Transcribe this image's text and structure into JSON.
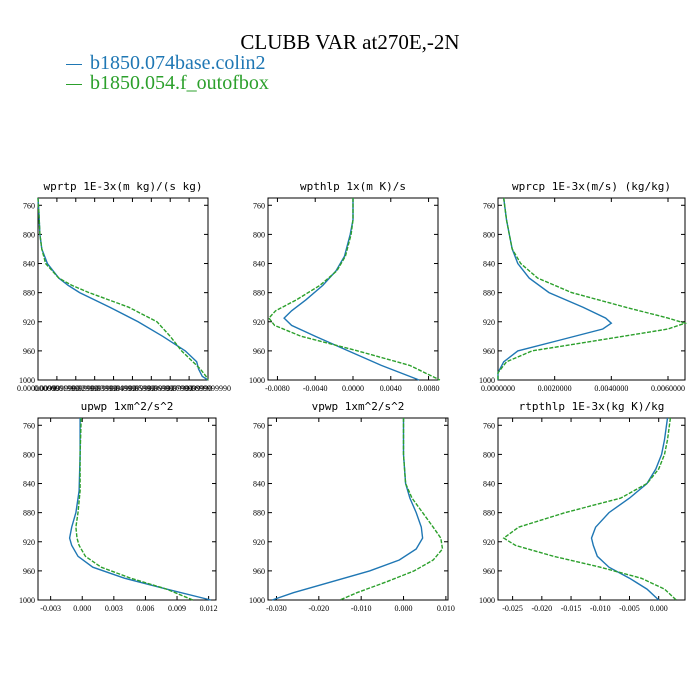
{
  "figure": {
    "title": "CLUBB VAR at270E,-2N",
    "legend": [
      {
        "label": "b1850.074base.colin2",
        "color": "#1f77b4"
      },
      {
        "label": "b1850.054.f_outofbox",
        "color": "#2ca02c"
      }
    ]
  },
  "chart_data": [
    {
      "type": "line",
      "title": "wprtp  1E-3x(m kg)/(s kg)",
      "ylim": [
        1000,
        750
      ],
      "yticks": [
        760,
        800,
        840,
        880,
        920,
        960,
        1000
      ],
      "xlim": [
        0.0,
        0.09
      ],
      "xticks": [
        0,
        0.01,
        0.02,
        0.03,
        0.04,
        0.05,
        0.06,
        0.07,
        0.08,
        0.09
      ],
      "xticklabels": [
        "0.000000000",
        "0.0099999990",
        "0.0199999990",
        "0.0299999990",
        "0.0399999990",
        "0.0499999990",
        "0.0599999990",
        "0.0699999990",
        "0.0799999990",
        "0.0899999990"
      ],
      "y": [
        750,
        770,
        800,
        820,
        840,
        860,
        870,
        880,
        900,
        920,
        940,
        960,
        975,
        985,
        995,
        1000
      ],
      "series": [
        {
          "color": "#1f77b4",
          "dashed": false,
          "x": [
            0.0,
            0.0005,
            0.001,
            0.002,
            0.005,
            0.011,
            0.016,
            0.022,
            0.038,
            0.053,
            0.066,
            0.078,
            0.084,
            0.085,
            0.087,
            0.09
          ]
        },
        {
          "color": "#2ca02c",
          "dashed": true,
          "x": [
            0.0,
            0.0005,
            0.001,
            0.002,
            0.004,
            0.011,
            0.018,
            0.027,
            0.048,
            0.063,
            0.07,
            0.076,
            0.082,
            0.086,
            0.089,
            0.09
          ]
        }
      ]
    },
    {
      "type": "line",
      "title": "wpthlp  1x(m K)/s",
      "ylim": [
        1000,
        750
      ],
      "yticks": [
        760,
        800,
        840,
        880,
        920,
        960,
        1000
      ],
      "xlim": [
        -0.009,
        0.009
      ],
      "xticks": [
        -0.008,
        -0.004,
        0.0,
        0.004,
        0.008
      ],
      "xticklabels": [
        "-0.0080",
        "-0.0040",
        "0.0000",
        "0.0040",
        "0.0080"
      ],
      "y": [
        750,
        780,
        800,
        830,
        850,
        870,
        890,
        905,
        915,
        925,
        940,
        960,
        980,
        1000
      ],
      "series": [
        {
          "color": "#1f77b4",
          "dashed": false,
          "x": [
            0.0,
            0.0,
            -0.0003,
            -0.0009,
            -0.0018,
            -0.0032,
            -0.005,
            -0.0065,
            -0.0073,
            -0.0065,
            -0.004,
            -0.0005,
            0.003,
            0.007
          ]
        },
        {
          "color": "#2ca02c",
          "dashed": true,
          "x": [
            0.0,
            0.0,
            -0.0002,
            -0.0008,
            -0.0017,
            -0.0035,
            -0.006,
            -0.0082,
            -0.0089,
            -0.0083,
            -0.0055,
            0.0005,
            0.006,
            0.0092
          ]
        }
      ]
    },
    {
      "type": "line",
      "title": "wprcp  1E-3x(m/s) (kg/kg)",
      "ylim": [
        1000,
        750
      ],
      "yticks": [
        760,
        800,
        840,
        880,
        920,
        960,
        1000
      ],
      "xlim": [
        0.0,
        0.0066
      ],
      "xticks": [
        0.0,
        0.002,
        0.004,
        0.006
      ],
      "xticklabels": [
        "0.0000000",
        "0.0020000",
        "0.0040000",
        "0.0060000"
      ],
      "y": [
        750,
        780,
        800,
        820,
        840,
        860,
        880,
        900,
        915,
        922,
        930,
        945,
        960,
        975,
        990,
        1000
      ],
      "series": [
        {
          "color": "#1f77b4",
          "dashed": false,
          "x": [
            0.0002,
            0.0003,
            0.0004,
            0.0005,
            0.0007,
            0.0011,
            0.0018,
            0.003,
            0.0038,
            0.004,
            0.0037,
            0.0022,
            0.0007,
            0.0002,
            0.0,
            0.0
          ]
        },
        {
          "color": "#2ca02c",
          "dashed": true,
          "x": [
            0.0002,
            0.0003,
            0.0004,
            0.0005,
            0.0008,
            0.0014,
            0.0026,
            0.0045,
            0.006,
            0.0066,
            0.006,
            0.0036,
            0.0012,
            0.0003,
            0.0,
            0.0
          ]
        }
      ]
    },
    {
      "type": "line",
      "title": "upwp  1xm^2/s^2",
      "ylim": [
        1000,
        750
      ],
      "yticks": [
        760,
        800,
        840,
        880,
        920,
        960,
        1000
      ],
      "xlim": [
        -0.0042,
        0.0127
      ],
      "xticks": [
        -0.003,
        0.0,
        0.003,
        0.006,
        0.009,
        0.012
      ],
      "xticklabels": [
        "-0.003",
        "0.000",
        "0.003",
        "0.006",
        "0.009",
        "0.012"
      ],
      "y": [
        750,
        800,
        850,
        880,
        900,
        915,
        925,
        940,
        955,
        970,
        985,
        1000
      ],
      "series": [
        {
          "color": "#1f77b4",
          "dashed": false,
          "x": [
            -0.0002,
            -0.0002,
            -0.0003,
            -0.0006,
            -0.001,
            -0.0012,
            -0.001,
            -0.0004,
            0.001,
            0.004,
            0.008,
            0.0122
          ]
        },
        {
          "color": "#2ca02c",
          "dashed": true,
          "x": [
            -0.0001,
            -0.0002,
            -0.0002,
            -0.0004,
            -0.0006,
            -0.0005,
            -0.0003,
            0.0003,
            0.0018,
            0.0046,
            0.008,
            0.0105
          ]
        }
      ]
    },
    {
      "type": "line",
      "title": "vpwp  1xm^2/s^2",
      "ylim": [
        1000,
        750
      ],
      "yticks": [
        760,
        800,
        840,
        880,
        920,
        960,
        1000
      ],
      "xlim": [
        -0.032,
        0.0105
      ],
      "xticks": [
        -0.03,
        -0.02,
        -0.01,
        0.0,
        0.01
      ],
      "xticklabels": [
        "-0.030",
        "-0.020",
        "-0.010",
        "0.000",
        "0.010"
      ],
      "y": [
        750,
        800,
        840,
        860,
        880,
        900,
        915,
        930,
        945,
        960,
        975,
        990,
        1000
      ],
      "series": [
        {
          "color": "#1f77b4",
          "dashed": false,
          "x": [
            0.0,
            0.0,
            0.0005,
            0.0015,
            0.003,
            0.0042,
            0.0045,
            0.003,
            -0.001,
            -0.008,
            -0.017,
            -0.026,
            -0.031
          ]
        },
        {
          "color": "#2ca02c",
          "dashed": true,
          "x": [
            0.0,
            0.0,
            0.0005,
            0.002,
            0.0045,
            0.007,
            0.0088,
            0.0092,
            0.007,
            0.0025,
            -0.004,
            -0.011,
            -0.015
          ]
        }
      ]
    },
    {
      "type": "line",
      "title": "rtpthlp  1E-3x(kg K)/kg",
      "ylim": [
        1000,
        750
      ],
      "yticks": [
        760,
        800,
        840,
        880,
        920,
        960,
        1000
      ],
      "xlim": [
        -0.0275,
        0.0045
      ],
      "xticks": [
        -0.025,
        -0.02,
        -0.015,
        -0.01,
        -0.005,
        0.0
      ],
      "xticklabels": [
        "-0.025",
        "-0.020",
        "-0.015",
        "-0.010",
        "-0.005",
        "0.000"
      ],
      "y": [
        750,
        780,
        800,
        820,
        840,
        860,
        880,
        900,
        915,
        925,
        940,
        955,
        970,
        985,
        1000
      ],
      "series": [
        {
          "color": "#1f77b4",
          "dashed": false,
          "x": [
            0.0015,
            0.001,
            0.0005,
            -0.0005,
            -0.002,
            -0.005,
            -0.0085,
            -0.0108,
            -0.0115,
            -0.0112,
            -0.0105,
            -0.0085,
            -0.005,
            -0.002,
            0.0
          ]
        },
        {
          "color": "#2ca02c",
          "dashed": true,
          "x": [
            0.002,
            0.0015,
            0.001,
            0.0,
            -0.002,
            -0.0065,
            -0.016,
            -0.024,
            -0.0265,
            -0.0245,
            -0.018,
            -0.01,
            -0.003,
            0.001,
            0.003
          ]
        }
      ]
    }
  ]
}
